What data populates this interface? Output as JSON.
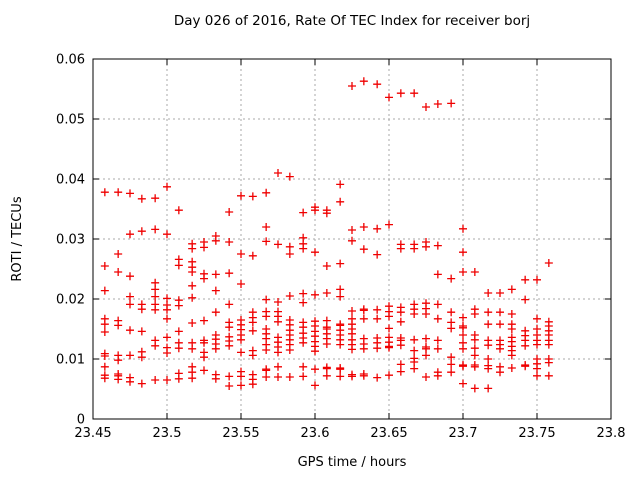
{
  "chart_data": {
    "type": "scatter",
    "title": "Day 026 of 2016, Rate Of TEC Index for receiver borj",
    "xlabel": "GPS time / hours",
    "ylabel": "ROTI / TECUs",
    "xlim": [
      23.45,
      23.8
    ],
    "ylim": [
      0,
      0.06
    ],
    "xticks": [
      {
        "value": 23.45,
        "label": "23.45"
      },
      {
        "value": 23.5,
        "label": "23.5"
      },
      {
        "value": 23.55,
        "label": "23.55"
      },
      {
        "value": 23.6,
        "label": "23.6"
      },
      {
        "value": 23.65,
        "label": "23.65"
      },
      {
        "value": 23.7,
        "label": "23.7"
      },
      {
        "value": 23.75,
        "label": "23.75"
      },
      {
        "value": 23.8,
        "label": "23.8"
      }
    ],
    "yticks": [
      {
        "value": 0,
        "label": "0"
      },
      {
        "value": 0.01,
        "label": "0.01"
      },
      {
        "value": 0.02,
        "label": "0.02"
      },
      {
        "value": 0.03,
        "label": "0.03"
      },
      {
        "value": 0.04,
        "label": "0.04"
      },
      {
        "value": 0.05,
        "label": "0.05"
      },
      {
        "value": 0.06,
        "label": "0.06"
      }
    ],
    "grid": true,
    "legend": false,
    "marker": "plus",
    "colors": {
      "marker": "#ef0000",
      "grid": "#aaaaaa",
      "axis": "#000000",
      "background": "#ffffff"
    },
    "columns": [
      {
        "t": 23.458,
        "values": [
          0.0378,
          0.0255,
          0.0214,
          0.0167,
          0.0158,
          0.0145,
          0.0109,
          0.0105,
          0.0087,
          0.0073,
          0.0068
        ]
      },
      {
        "t": 23.467,
        "values": [
          0.0378,
          0.0275,
          0.0245,
          0.0164,
          0.0156,
          0.0106,
          0.0098,
          0.0075,
          0.0072,
          0.0066
        ]
      },
      {
        "t": 23.475,
        "values": [
          0.0376,
          0.0308,
          0.0238,
          0.0204,
          0.0191,
          0.0148,
          0.0106,
          0.0069,
          0.0062
        ]
      },
      {
        "t": 23.483,
        "values": [
          0.0367,
          0.0313,
          0.0191,
          0.0183,
          0.0146,
          0.0112,
          0.0103,
          0.0059
        ]
      },
      {
        "t": 23.492,
        "values": [
          0.0368,
          0.0316,
          0.0227,
          0.0216,
          0.0204,
          0.0191,
          0.0182,
          0.0131,
          0.0122,
          0.0065
        ]
      },
      {
        "t": 23.5,
        "values": [
          0.0387,
          0.0308,
          0.0201,
          0.019,
          0.0182,
          0.0167,
          0.0136,
          0.0119,
          0.011,
          0.0065
        ]
      },
      {
        "t": 23.508,
        "values": [
          0.0348,
          0.0266,
          0.0256,
          0.0198,
          0.0189,
          0.0146,
          0.0127,
          0.0118,
          0.0076,
          0.0067
        ]
      },
      {
        "t": 23.517,
        "values": [
          0.0292,
          0.0284,
          0.0262,
          0.0253,
          0.0245,
          0.0222,
          0.0202,
          0.016,
          0.0127,
          0.0117,
          0.0087,
          0.0078,
          0.0068
        ]
      },
      {
        "t": 23.525,
        "values": [
          0.0295,
          0.0286,
          0.0242,
          0.0234,
          0.0164,
          0.0131,
          0.0127,
          0.0111,
          0.0103,
          0.0081
        ]
      },
      {
        "t": 23.533,
        "values": [
          0.0305,
          0.0297,
          0.0241,
          0.0214,
          0.0178,
          0.014,
          0.0133,
          0.0125,
          0.0117,
          0.0074,
          0.0067
        ]
      },
      {
        "t": 23.542,
        "values": [
          0.0345,
          0.0295,
          0.0243,
          0.0191,
          0.0161,
          0.0153,
          0.0137,
          0.013,
          0.0122,
          0.0071,
          0.0055
        ]
      },
      {
        "t": 23.55,
        "values": [
          0.0372,
          0.0275,
          0.0225,
          0.0165,
          0.0157,
          0.0149,
          0.014,
          0.0132,
          0.0111,
          0.0079,
          0.0071,
          0.0056
        ]
      },
      {
        "t": 23.558,
        "values": [
          0.0371,
          0.0272,
          0.0178,
          0.0169,
          0.0161,
          0.0147,
          0.0114,
          0.0106,
          0.0074,
          0.0066,
          0.0058
        ]
      },
      {
        "t": 23.567,
        "values": [
          0.0377,
          0.032,
          0.0296,
          0.0199,
          0.0179,
          0.0171,
          0.015,
          0.0142,
          0.0134,
          0.0124,
          0.0115,
          0.0083,
          0.0081,
          0.007
        ]
      },
      {
        "t": 23.575,
        "values": [
          0.041,
          0.0291,
          0.0195,
          0.0179,
          0.0171,
          0.0162,
          0.0136,
          0.0128,
          0.012,
          0.0111,
          0.0087,
          0.007
        ]
      },
      {
        "t": 23.583,
        "values": [
          0.0404,
          0.0287,
          0.0275,
          0.0205,
          0.0165,
          0.0157,
          0.0148,
          0.014,
          0.0132,
          0.0124,
          0.0115,
          0.007
        ]
      },
      {
        "t": 23.592,
        "values": [
          0.0344,
          0.0302,
          0.0292,
          0.0284,
          0.0209,
          0.0194,
          0.0161,
          0.0153,
          0.0143,
          0.0135,
          0.0127,
          0.0087,
          0.0071
        ]
      },
      {
        "t": 23.6,
        "values": [
          0.0353,
          0.0348,
          0.0278,
          0.0207,
          0.0163,
          0.0155,
          0.0146,
          0.0138,
          0.0129,
          0.0121,
          0.0113,
          0.0083,
          0.0056
        ]
      },
      {
        "t": 23.608,
        "values": [
          0.0348,
          0.0343,
          0.0255,
          0.021,
          0.0164,
          0.0153,
          0.015,
          0.0142,
          0.0134,
          0.0125,
          0.0086,
          0.0084,
          0.0072
        ]
      },
      {
        "t": 23.617,
        "values": [
          0.0391,
          0.0362,
          0.0259,
          0.0216,
          0.0204,
          0.0158,
          0.0156,
          0.0148,
          0.014,
          0.0132,
          0.0124,
          0.0085,
          0.0083,
          0.0071
        ]
      },
      {
        "t": 23.625,
        "values": [
          0.0555,
          0.0315,
          0.0297,
          0.018,
          0.0167,
          0.0158,
          0.015,
          0.0142,
          0.0132,
          0.0124,
          0.0116,
          0.0074,
          0.0071
        ]
      },
      {
        "t": 23.633,
        "values": [
          0.0563,
          0.032,
          0.0283,
          0.0183,
          0.0181,
          0.0167,
          0.0134,
          0.0125,
          0.0117,
          0.0075,
          0.0072
        ]
      },
      {
        "t": 23.642,
        "values": [
          0.0558,
          0.0317,
          0.0274,
          0.0182,
          0.0167,
          0.0135,
          0.0127,
          0.0118,
          0.0069
        ]
      },
      {
        "t": 23.65,
        "values": [
          0.0536,
          0.0324,
          0.0188,
          0.0179,
          0.0171,
          0.0151,
          0.0136,
          0.0128,
          0.0121,
          0.0119,
          0.0073
        ]
      },
      {
        "t": 23.658,
        "values": [
          0.0543,
          0.0291,
          0.0284,
          0.0186,
          0.0178,
          0.0162,
          0.0135,
          0.0131,
          0.0123,
          0.0091,
          0.0079
        ]
      },
      {
        "t": 23.667,
        "values": [
          0.0543,
          0.0291,
          0.0284,
          0.0191,
          0.0183,
          0.0175,
          0.0132,
          0.0114,
          0.0101,
          0.0095,
          0.0084
        ]
      },
      {
        "t": 23.675,
        "values": [
          0.052,
          0.0295,
          0.0287,
          0.0193,
          0.0184,
          0.0175,
          0.0134,
          0.012,
          0.0117,
          0.0106,
          0.007
        ]
      },
      {
        "t": 23.683,
        "values": [
          0.0525,
          0.0289,
          0.0241,
          0.0191,
          0.0167,
          0.0131,
          0.0117,
          0.0078,
          0.0072
        ]
      },
      {
        "t": 23.692,
        "values": [
          0.0526,
          0.0234,
          0.0178,
          0.0161,
          0.0151,
          0.0103,
          0.0091,
          0.0078
        ]
      },
      {
        "t": 23.7,
        "values": [
          0.0317,
          0.0278,
          0.0245,
          0.0169,
          0.0155,
          0.0152,
          0.014,
          0.0127,
          0.0117,
          0.009,
          0.0088,
          0.0059
        ]
      },
      {
        "t": 23.708,
        "values": [
          0.0245,
          0.0183,
          0.0175,
          0.014,
          0.0132,
          0.0118,
          0.0106,
          0.009,
          0.0087,
          0.0051
        ]
      },
      {
        "t": 23.717,
        "values": [
          0.021,
          0.0178,
          0.0158,
          0.0131,
          0.0123,
          0.01,
          0.0089,
          0.0084,
          0.0051
        ]
      },
      {
        "t": 23.725,
        "values": [
          0.021,
          0.0178,
          0.0158,
          0.0131,
          0.0124,
          0.0117,
          0.0087,
          0.0078
        ]
      },
      {
        "t": 23.733,
        "values": [
          0.0216,
          0.0175,
          0.0158,
          0.015,
          0.0136,
          0.0129,
          0.0121,
          0.0114,
          0.0106,
          0.0085
        ]
      },
      {
        "t": 23.742,
        "values": [
          0.0232,
          0.0199,
          0.0147,
          0.0139,
          0.0131,
          0.0122,
          0.009,
          0.0088
        ]
      },
      {
        "t": 23.75,
        "values": [
          0.0232,
          0.0167,
          0.015,
          0.014,
          0.0131,
          0.0124,
          0.01,
          0.0092,
          0.0084,
          0.0072
        ]
      },
      {
        "t": 23.758,
        "values": [
          0.026,
          0.0162,
          0.0155,
          0.0147,
          0.014,
          0.0131,
          0.0124,
          0.01,
          0.0094,
          0.0072
        ]
      }
    ]
  }
}
